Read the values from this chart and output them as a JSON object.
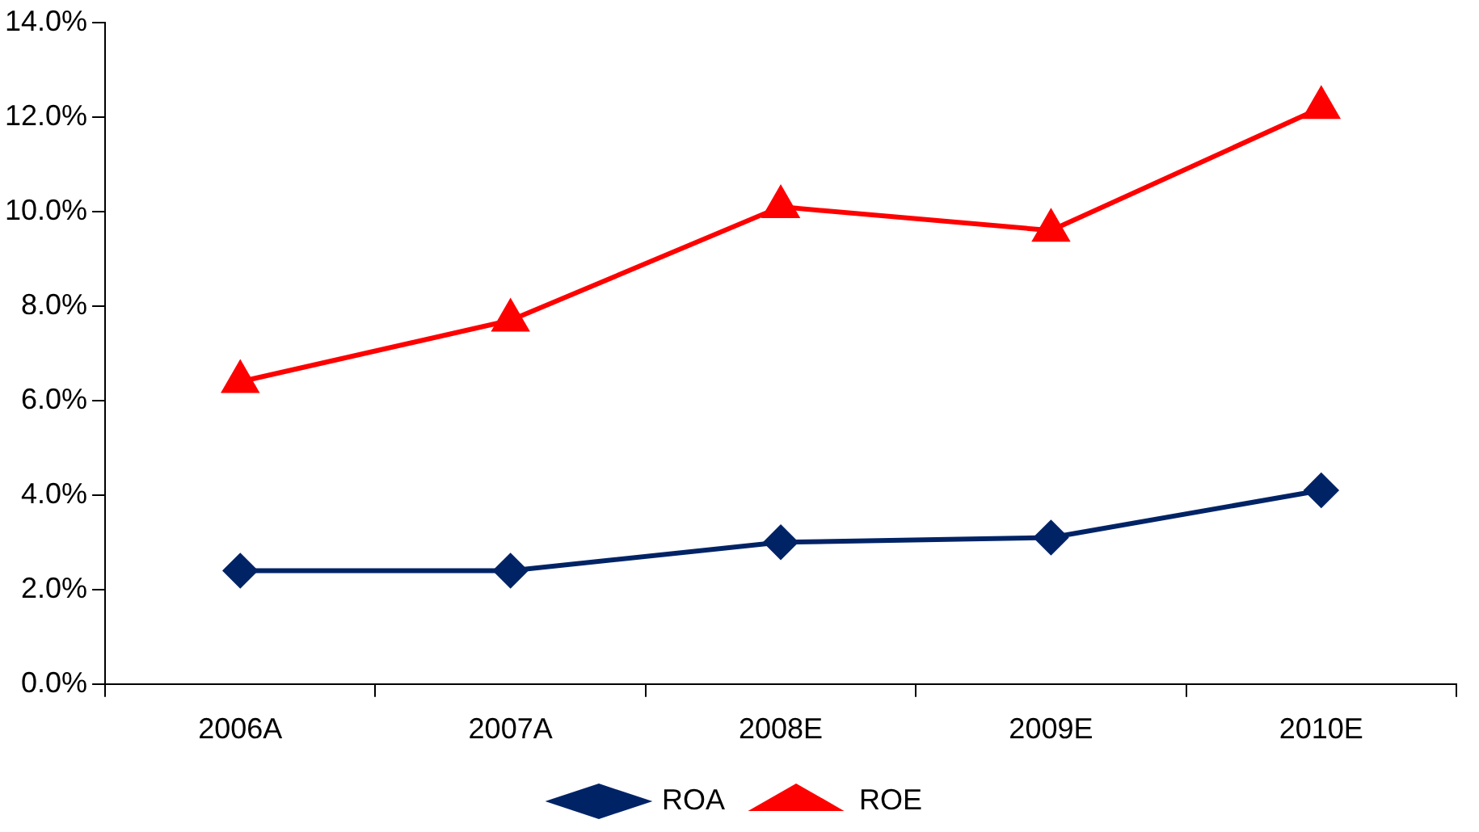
{
  "chart_data": {
    "type": "line",
    "categories": [
      "2006A",
      "2007A",
      "2008E",
      "2009E",
      "2010E"
    ],
    "series": [
      {
        "name": "ROA",
        "color": "#002366",
        "marker": "diamond",
        "values": [
          2.4,
          2.4,
          3.0,
          3.1,
          4.1
        ]
      },
      {
        "name": "ROE",
        "color": "#ff0000",
        "marker": "triangle",
        "values": [
          6.4,
          7.7,
          10.1,
          9.6,
          12.2
        ]
      }
    ],
    "ylim": [
      0,
      14
    ],
    "yticks": [
      {
        "value": 0,
        "label": "0.0%"
      },
      {
        "value": 2,
        "label": "2.0%"
      },
      {
        "value": 4,
        "label": "4.0%"
      },
      {
        "value": 6,
        "label": "6.0%"
      },
      {
        "value": 8,
        "label": "8.0%"
      },
      {
        "value": 10,
        "label": "10.0%"
      },
      {
        "value": 12,
        "label": "12.0%"
      },
      {
        "value": 14,
        "label": "14.0%"
      }
    ],
    "grid": false,
    "legend": "bottom",
    "line_style": "solid"
  }
}
